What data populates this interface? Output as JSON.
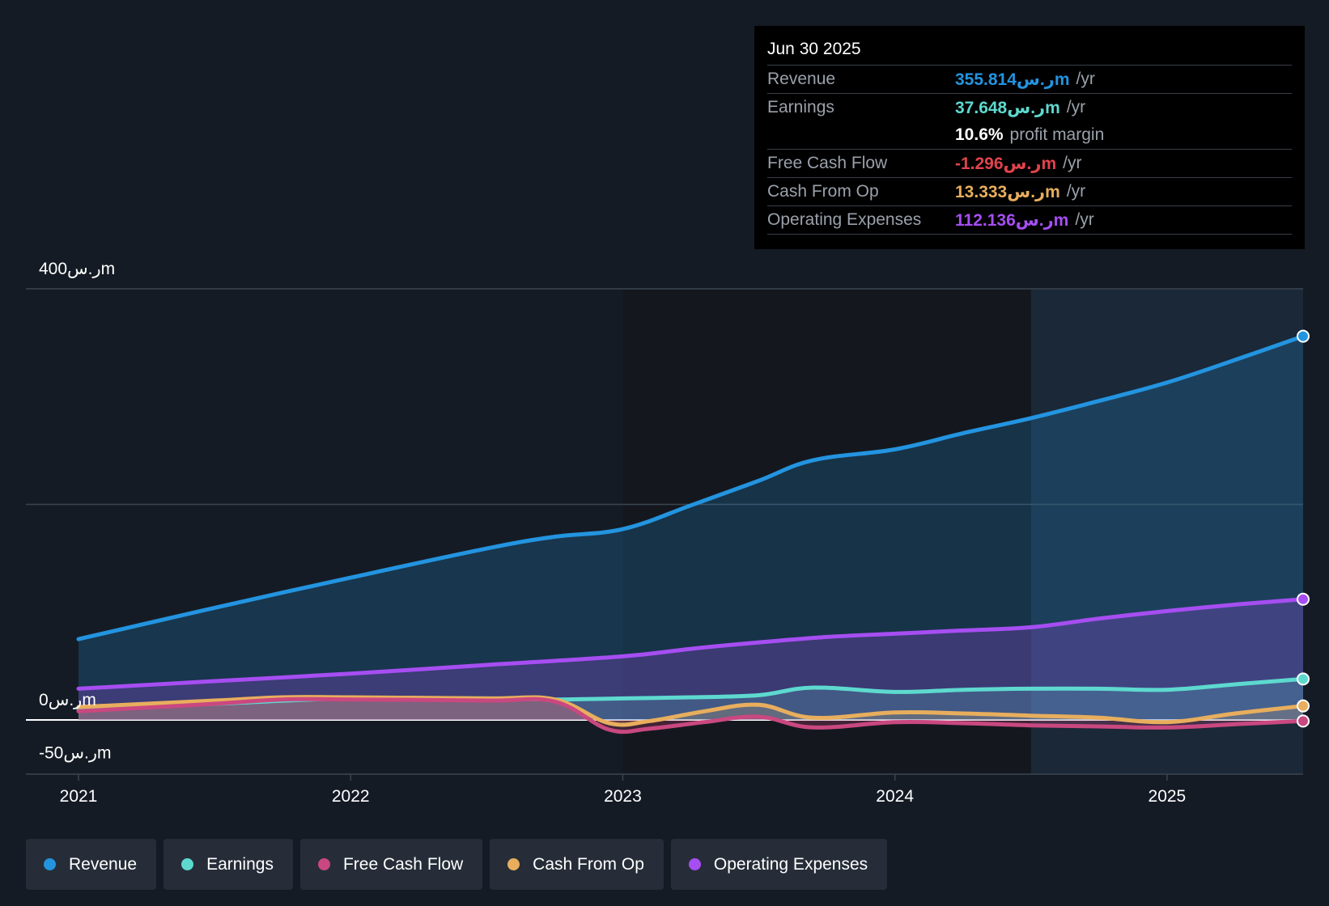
{
  "tooltip": {
    "date": "Jun 30 2025",
    "rows": [
      {
        "label": "Revenue",
        "value": "355.814ر.سm",
        "unit": "/yr",
        "color": "#2394e0"
      },
      {
        "label": "Earnings",
        "value": "37.648ر.سm",
        "unit": "/yr",
        "color": "#5ed9cf"
      },
      {
        "label": "",
        "value": "10.6%",
        "unit": "profit margin",
        "color": "#ffffff"
      },
      {
        "label": "Free Cash Flow",
        "value": "-1.296ر.سm",
        "unit": "/yr",
        "color": "#e2434d"
      },
      {
        "label": "Cash From Op",
        "value": "13.333ر.سm",
        "unit": "/yr",
        "color": "#e8ae5d"
      },
      {
        "label": "Operating Expenses",
        "value": "112.136ر.سm",
        "unit": "/yr",
        "color": "#a64ef2"
      }
    ]
  },
  "legend": [
    {
      "label": "Revenue",
      "color": "#2394e0"
    },
    {
      "label": "Earnings",
      "color": "#5ed9cf"
    },
    {
      "label": "Free Cash Flow",
      "color": "#c94880"
    },
    {
      "label": "Cash From Op",
      "color": "#e8ae5d"
    },
    {
      "label": "Operating Expenses",
      "color": "#a64ef2"
    }
  ],
  "chart_data": {
    "type": "area",
    "y_tick_labels": [
      "400ر.سm",
      "0ر.سm",
      "-50ر.سm"
    ],
    "ylim": [
      -50,
      400
    ],
    "xlim": [
      2021.0,
      2025.5
    ],
    "x_ticks": [
      2021,
      2022,
      2023,
      2024,
      2025
    ],
    "x_tick_labels": [
      "2021",
      "2022",
      "2023",
      "2024",
      "2025"
    ],
    "gridlines": [
      400,
      200,
      0
    ],
    "series": [
      {
        "name": "Revenue",
        "color": "#2394e0",
        "fill": true,
        "x": [
          2021.0,
          2021.5,
          2022.0,
          2022.5,
          2022.75,
          2023.0,
          2023.25,
          2023.5,
          2023.7,
          2024.0,
          2024.25,
          2024.5,
          2024.75,
          2025.0,
          2025.25,
          2025.5
        ],
        "y": [
          75,
          104,
          132,
          159,
          170,
          177,
          199,
          222,
          241,
          251,
          266,
          280,
          296,
          313,
          334,
          356
        ]
      },
      {
        "name": "Operating Expenses",
        "color": "#a64ef2",
        "fill": true,
        "x": [
          2021.0,
          2021.5,
          2022.0,
          2022.5,
          2023.0,
          2023.25,
          2023.5,
          2023.75,
          2024.0,
          2024.25,
          2024.5,
          2024.75,
          2025.0,
          2025.25,
          2025.5
        ],
        "y": [
          29,
          36,
          43,
          51,
          59,
          66,
          72,
          77,
          80,
          83,
          86,
          94,
          101,
          107,
          112
        ]
      },
      {
        "name": "Earnings",
        "color": "#5ed9cf",
        "fill": true,
        "x": [
          2021.0,
          2021.5,
          2022.0,
          2022.5,
          2022.75,
          2023.0,
          2023.25,
          2023.5,
          2023.7,
          2024.0,
          2024.25,
          2024.5,
          2024.75,
          2025.0,
          2025.25,
          2025.5
        ],
        "y": [
          10,
          15,
          20,
          20,
          19,
          20,
          21,
          23,
          30,
          26,
          28,
          29,
          29,
          28,
          33,
          38
        ]
      },
      {
        "name": "Cash From Op",
        "color": "#e8ae5d",
        "fill": true,
        "x": [
          2021.0,
          2021.5,
          2021.75,
          2022.0,
          2022.5,
          2022.75,
          2022.95,
          2023.1,
          2023.3,
          2023.5,
          2023.7,
          2024.0,
          2024.25,
          2024.5,
          2024.75,
          2025.0,
          2025.25,
          2025.5
        ],
        "y": [
          12,
          18,
          21,
          21,
          20,
          19,
          -3,
          -1,
          8,
          14,
          2,
          7,
          6,
          4,
          2,
          -2,
          6,
          13
        ]
      },
      {
        "name": "Free Cash Flow",
        "color": "#c94880",
        "fill": true,
        "x": [
          2021.0,
          2021.5,
          2021.75,
          2022.0,
          2022.5,
          2022.75,
          2022.95,
          2023.1,
          2023.3,
          2023.5,
          2023.7,
          2024.0,
          2024.25,
          2024.5,
          2024.75,
          2025.0,
          2025.25,
          2025.5
        ],
        "y": [
          8,
          15,
          19,
          19,
          18,
          17,
          -9,
          -8,
          -2,
          3,
          -7,
          -2,
          -3,
          -5,
          -6,
          -7,
          -4,
          -1
        ]
      }
    ]
  }
}
